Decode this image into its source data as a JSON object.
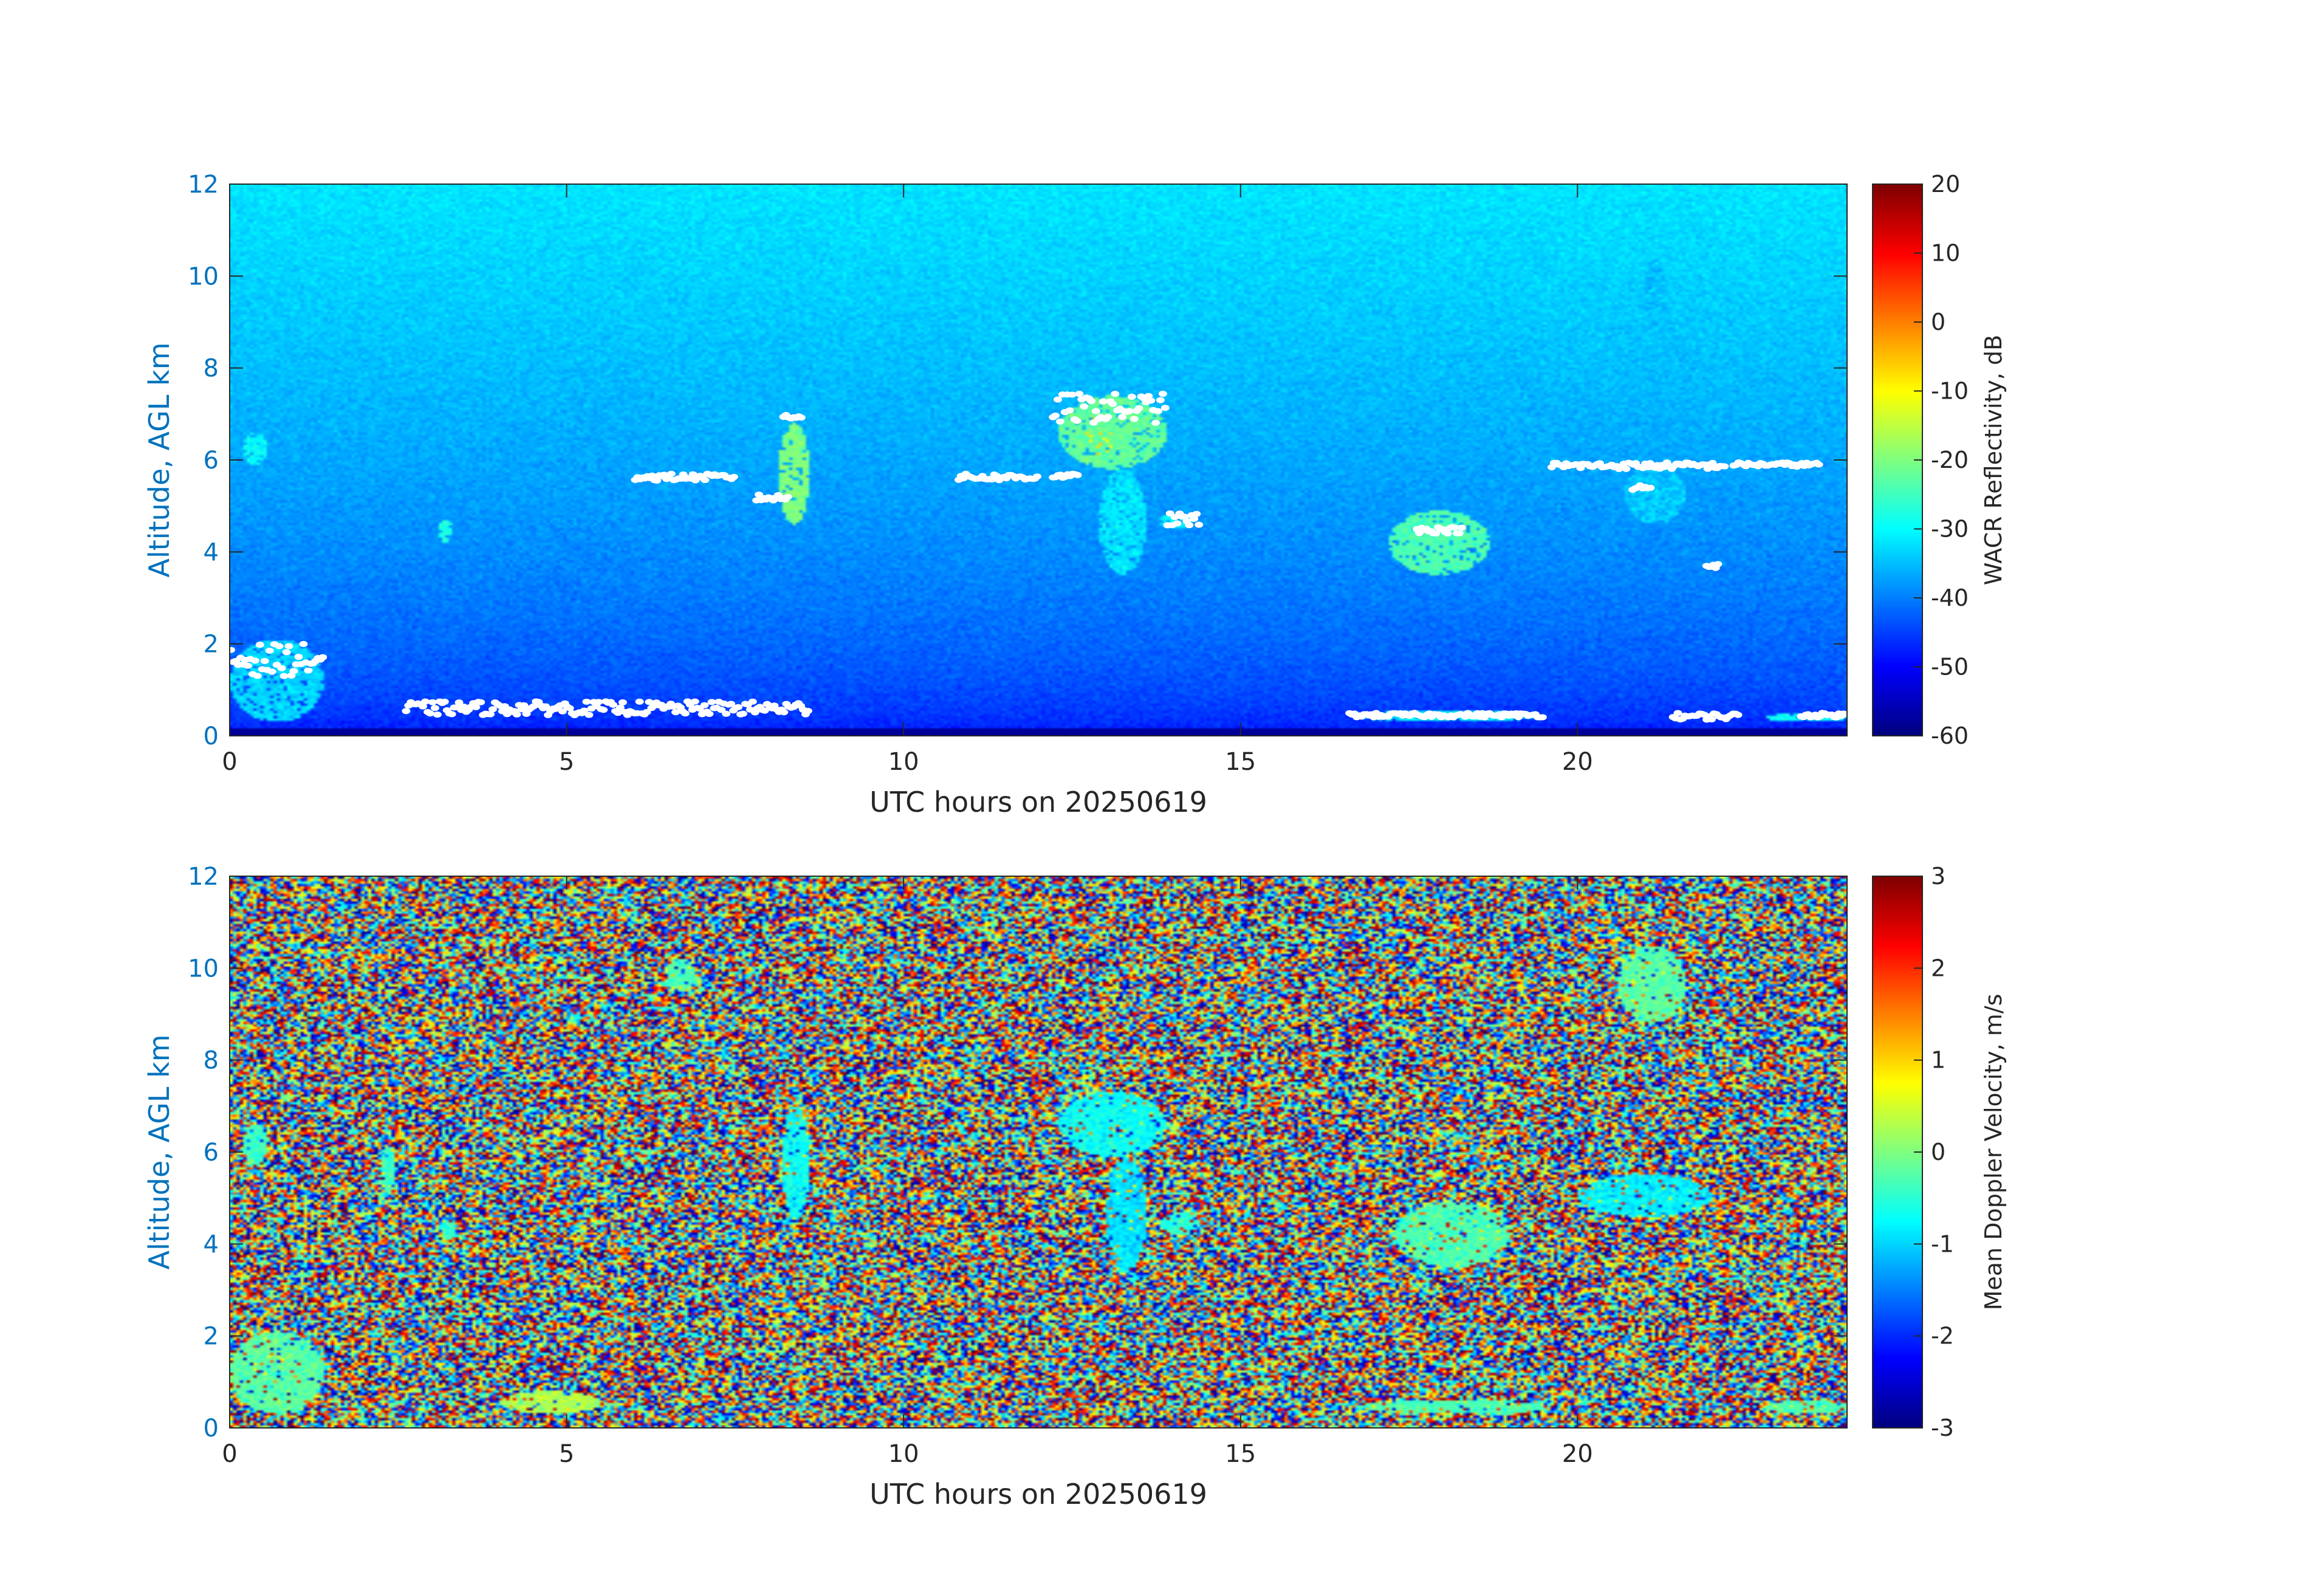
{
  "chart_data": [
    {
      "type": "heatmap",
      "title": "",
      "xlabel": "UTC hours on 20250619",
      "ylabel": "Altitude, AGL km",
      "xlim": [
        0,
        24
      ],
      "ylim": [
        0,
        12
      ],
      "x_ticks": [
        0,
        5,
        10,
        15,
        20
      ],
      "y_ticks": [
        0,
        2,
        4,
        6,
        8,
        10,
        12
      ],
      "grid": false,
      "colormap": "jet",
      "colorbar": {
        "label": "WACR Reflectivity, dB",
        "range": [
          -60,
          20
        ],
        "ticks": [
          -60,
          -50,
          -40,
          -30,
          -20,
          -10,
          0,
          10,
          20
        ]
      },
      "background": "noise increasing from about -50 dB near surface to about -32 dB at 12 km",
      "features": [
        {
          "x": [
            0,
            1.4
          ],
          "y": [
            0.3,
            2.1
          ],
          "value_db": -33
        },
        {
          "x": [
            0.2,
            0.55
          ],
          "y": [
            5.9,
            6.6
          ],
          "value_db": -30
        },
        {
          "x": [
            3.1,
            3.3
          ],
          "y": [
            4.2,
            4.7
          ],
          "value_db": -28
        },
        {
          "x": [
            8.15,
            8.6
          ],
          "y": [
            4.6,
            6.8
          ],
          "value_db": -20
        },
        {
          "x": [
            12.3,
            13.9
          ],
          "y": [
            5.8,
            7.4
          ],
          "value_db": -22
        },
        {
          "x": [
            12.7,
            13.2
          ],
          "y": [
            6.1,
            7.0
          ],
          "value_db": -8
        },
        {
          "x": [
            12.9,
            13.6
          ],
          "y": [
            3.5,
            5.8
          ],
          "value_db": -32
        },
        {
          "x": [
            13.8,
            14.3
          ],
          "y": [
            4.5,
            4.85
          ],
          "value_db": -30
        },
        {
          "x": [
            17.2,
            18.7
          ],
          "y": [
            3.5,
            4.9
          ],
          "value_db": -24
        },
        {
          "x": [
            20.7,
            21.6
          ],
          "y": [
            4.6,
            5.9
          ],
          "value_db": -34
        },
        {
          "x": [
            21.0,
            21.3
          ],
          "y": [
            8.9,
            10.4
          ],
          "value_db": -35
        },
        {
          "x": [
            16.7,
            19.4
          ],
          "y": [
            0.3,
            0.55
          ],
          "value_db": -30
        },
        {
          "x": [
            22.8,
            24
          ],
          "y": [
            0.3,
            0.5
          ],
          "value_db": -30
        }
      ],
      "white_markers": [
        {
          "x": [
            0.0,
            1.4
          ],
          "y": [
            1.3,
            2.0
          ]
        },
        {
          "x": [
            2.6,
            8.6
          ],
          "y": [
            0.45,
            0.75
          ]
        },
        {
          "x": [
            6.0,
            7.5
          ],
          "y": [
            5.55,
            5.7
          ]
        },
        {
          "x": [
            7.8,
            8.3
          ],
          "y": [
            5.1,
            5.25
          ]
        },
        {
          "x": [
            8.2,
            8.5
          ],
          "y": [
            6.9,
            7.0
          ]
        },
        {
          "x": [
            10.8,
            12.0
          ],
          "y": [
            5.55,
            5.7
          ]
        },
        {
          "x": [
            12.2,
            12.6
          ],
          "y": [
            5.6,
            5.7
          ]
        },
        {
          "x": [
            12.2,
            13.9
          ],
          "y": [
            6.8,
            7.45
          ]
        },
        {
          "x": [
            13.9,
            14.4
          ],
          "y": [
            4.55,
            4.85
          ]
        },
        {
          "x": [
            16.6,
            19.5
          ],
          "y": [
            0.4,
            0.5
          ]
        },
        {
          "x": [
            17.6,
            18.3
          ],
          "y": [
            4.4,
            4.55
          ]
        },
        {
          "x": [
            19.6,
            22.2
          ],
          "y": [
            5.8,
            5.95
          ]
        },
        {
          "x": [
            22.3,
            23.6
          ],
          "y": [
            5.85,
            5.95
          ]
        },
        {
          "x": [
            20.8,
            21.1
          ],
          "y": [
            5.3,
            5.45
          ]
        },
        {
          "x": [
            21.9,
            22.1
          ],
          "y": [
            3.65,
            3.75
          ]
        },
        {
          "x": [
            21.4,
            22.4
          ],
          "y": [
            0.35,
            0.5
          ]
        },
        {
          "x": [
            23.3,
            24
          ],
          "y": [
            0.4,
            0.5
          ]
        }
      ]
    },
    {
      "type": "heatmap",
      "title": "",
      "xlabel": "UTC hours on 20250619",
      "ylabel": "Altitude, AGL km",
      "xlim": [
        0,
        24
      ],
      "ylim": [
        0,
        12
      ],
      "x_ticks": [
        0,
        5,
        10,
        15,
        20
      ],
      "y_ticks": [
        0,
        2,
        4,
        6,
        8,
        10,
        12
      ],
      "grid": false,
      "colormap": "jet",
      "colorbar": {
        "label": "Mean Doppler Velocity, m/s",
        "range": [
          -3,
          3
        ],
        "ticks": [
          -3,
          -2,
          -1,
          0,
          1,
          2,
          3
        ]
      },
      "background": "random noise spanning the full -3 to 3 m/s range",
      "features": [
        {
          "x": [
            0,
            1.4
          ],
          "y": [
            0.3,
            2.1
          ],
          "value_ms": -0.2
        },
        {
          "x": [
            0.2,
            0.55
          ],
          "y": [
            5.7,
            6.6
          ],
          "value_ms": -0.4
        },
        {
          "x": [
            2.25,
            2.45
          ],
          "y": [
            5.1,
            6.1
          ],
          "value_ms": -0.4
        },
        {
          "x": [
            3.15,
            3.35
          ],
          "y": [
            4.1,
            4.5
          ],
          "value_ms": -0.4
        },
        {
          "x": [
            6.5,
            6.9
          ],
          "y": [
            9.5,
            10.2
          ],
          "value_ms": -0.3
        },
        {
          "x": [
            8.2,
            8.6
          ],
          "y": [
            4.5,
            7.0
          ],
          "value_ms": -0.7
        },
        {
          "x": [
            12.3,
            13.9
          ],
          "y": [
            5.9,
            7.3
          ],
          "value_ms": -0.7
        },
        {
          "x": [
            13.0,
            13.6
          ],
          "y": [
            3.4,
            5.9
          ],
          "value_ms": -0.9
        },
        {
          "x": [
            13.8,
            14.4
          ],
          "y": [
            4.2,
            4.7
          ],
          "value_ms": -0.5
        },
        {
          "x": [
            17.3,
            19.0
          ],
          "y": [
            3.5,
            4.9
          ],
          "value_ms": -0.3
        },
        {
          "x": [
            20.0,
            22.0
          ],
          "y": [
            4.6,
            5.5
          ],
          "value_ms": -0.8
        },
        {
          "x": [
            20.6,
            21.6
          ],
          "y": [
            8.8,
            10.5
          ],
          "value_ms": -0.2
        },
        {
          "x": [
            4.0,
            5.5
          ],
          "y": [
            0.3,
            0.8
          ],
          "value_ms": 0.3
        },
        {
          "x": [
            16.7,
            19.6
          ],
          "y": [
            0.3,
            0.6
          ],
          "value_ms": -0.3
        },
        {
          "x": [
            22.8,
            24
          ],
          "y": [
            0.3,
            0.6
          ],
          "value_ms": -0.3
        }
      ]
    }
  ]
}
